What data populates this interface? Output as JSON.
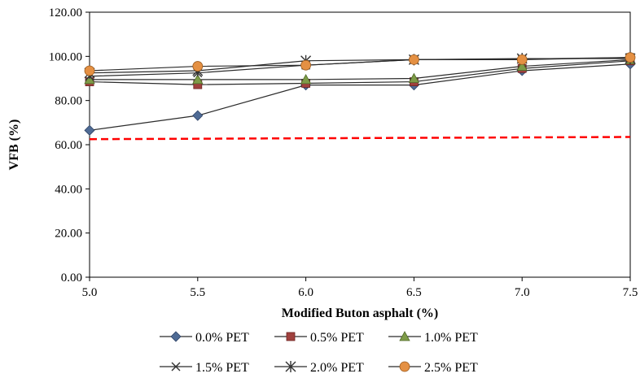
{
  "chart_data": {
    "type": "line",
    "title": "",
    "xlabel": "Modified  Buton asphalt (%)",
    "ylabel": "VFB (%)",
    "x": [
      5.0,
      5.5,
      6.0,
      6.5,
      7.0,
      7.5
    ],
    "x_tick_labels": [
      "5.0",
      "5.5",
      "6.0",
      "6.5",
      "7.0",
      "7.5"
    ],
    "xlim": [
      5.0,
      7.5
    ],
    "ylim": [
      0,
      120
    ],
    "y_tick_labels": [
      "0.00",
      "20.00",
      "40.00",
      "60.00",
      "80.00",
      "100.00",
      "120.00"
    ],
    "grid": false,
    "legend_position": "bottom",
    "series": [
      {
        "name": "0.0% PET",
        "marker": "diamond",
        "color": "#4f6b95",
        "values": [
          66.5,
          73.2,
          87.0,
          87.0,
          93.5,
          96.5
        ]
      },
      {
        "name": "0.5% PET",
        "marker": "square",
        "color": "#a0413e",
        "values": [
          88.5,
          87.2,
          87.8,
          88.5,
          94.5,
          98.0
        ]
      },
      {
        "name": "1.0% PET",
        "marker": "triangle",
        "color": "#7e9b48",
        "values": [
          89.5,
          89.5,
          89.5,
          90.0,
          95.5,
          98.5
        ]
      },
      {
        "name": "1.5% PET",
        "marker": "x",
        "color": "#333333",
        "values": [
          91.0,
          92.5,
          96.0,
          98.5,
          98.8,
          99.5
        ]
      },
      {
        "name": "2.0% PET",
        "marker": "asterisk",
        "color": "#333333",
        "values": [
          92.5,
          93.5,
          98.0,
          98.5,
          99.0,
          99.0
        ]
      },
      {
        "name": "2.5% PET",
        "marker": "circle",
        "color": "#e49043",
        "values": [
          93.5,
          95.5,
          96.0,
          98.5,
          98.5,
          99.5
        ]
      }
    ],
    "reference_line": {
      "color": "#ff0000",
      "style": "dashed",
      "start": [
        5.0,
        62.5
      ],
      "end": [
        7.5,
        63.5
      ]
    }
  }
}
